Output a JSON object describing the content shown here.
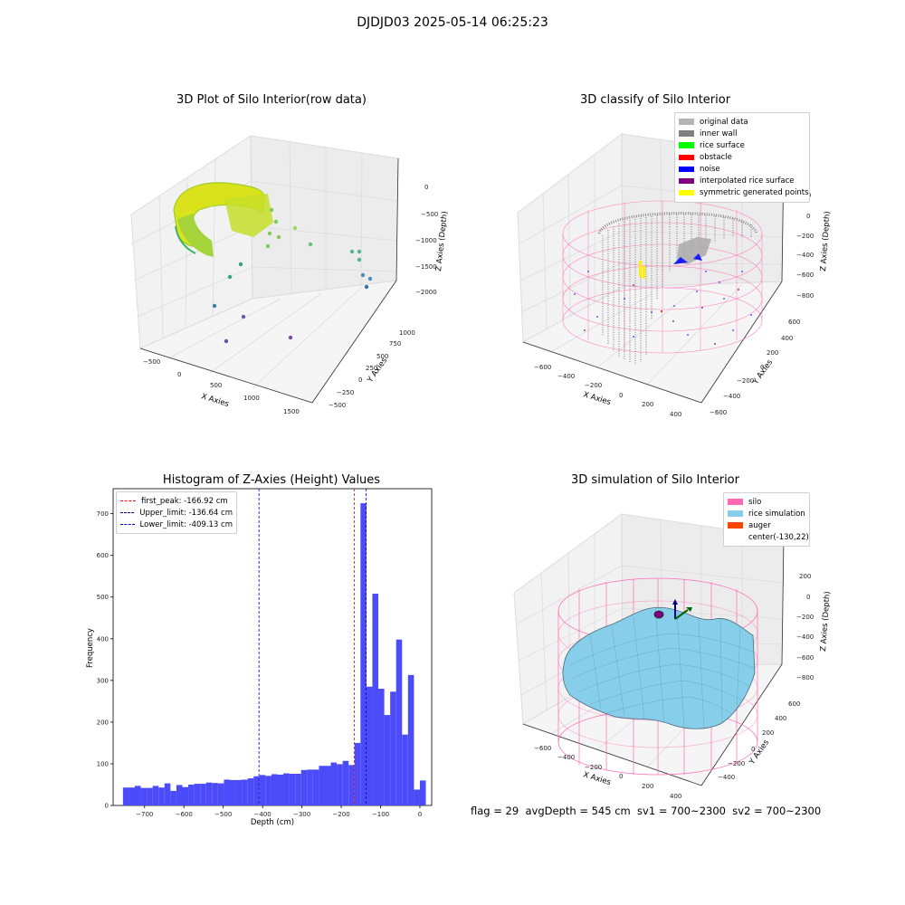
{
  "figure": {
    "title": "DJDJD03 2025-05-14 06:25:23"
  },
  "panels": {
    "raw": {
      "title": "3D Plot of Silo Interior(row data)",
      "xlabel": "X Axies",
      "ylabel": "Y Axies",
      "zlabel": "Z Axies (Depth)",
      "xticks": [
        "−500",
        "0",
        "500",
        "1000",
        "1500"
      ],
      "yticks": [
        "1000",
        "750",
        "500",
        "250",
        "0",
        "−250",
        "−500"
      ],
      "zticks": [
        "0",
        "−500",
        "−1000",
        "−1500",
        "−2000"
      ]
    },
    "classify": {
      "title": "3D classify of Silo Interior",
      "xlabel": "X Axies",
      "ylabel": "Y Axies",
      "zlabel": "Z Axies (Depth)",
      "xticks": [
        "−600",
        "−400",
        "−200",
        "0",
        "200",
        "400"
      ],
      "yticks": [
        "600",
        "400",
        "200",
        "0",
        "−200",
        "−400",
        "−600"
      ],
      "zticks": [
        "200",
        "0",
        "−200",
        "−400",
        "−600",
        "−800"
      ],
      "legend": [
        {
          "label": "original data",
          "color": "#b4b4b4"
        },
        {
          "label": "inner wall",
          "color": "#808080"
        },
        {
          "label": "rice surface",
          "color": "#00ff00"
        },
        {
          "label": "obstacle",
          "color": "#ff0000"
        },
        {
          "label": "noise",
          "color": "#0000ff"
        },
        {
          "label": "interpolated rice surface",
          "color": "#800080"
        },
        {
          "label": "symmetric generated points",
          "color": "#ffff00"
        }
      ]
    },
    "histogram": {
      "title": "Histogram of Z-Axies (Height) Values",
      "xlabel": "Depth (cm)",
      "ylabel": "Frequency",
      "xticks": [
        "−700",
        "−600",
        "−500",
        "−400",
        "−300",
        "−200",
        "−100",
        "0"
      ],
      "yticks": [
        "0",
        "100",
        "200",
        "300",
        "400",
        "500",
        "600",
        "700"
      ],
      "legend": [
        {
          "label": "first_peak: -166.92 cm",
          "color": "#ff0000"
        },
        {
          "label": "Upper_limit: -136.64 cm",
          "color": "#0000cc"
        },
        {
          "label": "Lower_limit: -409.13 cm",
          "color": "#0000cc"
        }
      ]
    },
    "simulation": {
      "title": "3D simulation of Silo Interior",
      "xlabel": "X Axies",
      "ylabel": "Y Axies",
      "zlabel": "Z Axies (Depth)",
      "xticks": [
        "−600",
        "−400",
        "−200",
        "0",
        "200",
        "400"
      ],
      "yticks": [
        "600",
        "400",
        "200",
        "0",
        "−200",
        "−400"
      ],
      "zticks": [
        "200",
        "0",
        "−200",
        "−400",
        "−600",
        "−800"
      ],
      "legend": [
        {
          "label": "silo",
          "color": "#ff69b4"
        },
        {
          "label": "rice simulation",
          "color": "#87ceeb"
        },
        {
          "label": "auger",
          "color": "#ff4500"
        },
        {
          "label": "center(-130,22)",
          "color": ""
        }
      ]
    }
  },
  "footer": {
    "text": "flag = 29  avgDepth = 545 cm  sv1 = 700~2300  sv2 = 700~2300"
  },
  "chart_data": {
    "type": "bar",
    "title": "Histogram of Z-Axies (Height) Values",
    "xlabel": "Depth (cm)",
    "ylabel": "Frequency",
    "xlim": [
      -780,
      30
    ],
    "ylim": [
      0,
      760
    ],
    "bin_start": -755,
    "bin_width": 15.1,
    "values": [
      43,
      43,
      47,
      42,
      42,
      47,
      43,
      53,
      35,
      49,
      44,
      50,
      52,
      52,
      55,
      54,
      53,
      62,
      61,
      61,
      62,
      65,
      70,
      73,
      71,
      75,
      74,
      77,
      76,
      76,
      85,
      86,
      86,
      95,
      95,
      103,
      99,
      107,
      97,
      150,
      725,
      285,
      508,
      280,
      217,
      273,
      398,
      170,
      313,
      38,
      60
    ],
    "lines": [
      {
        "name": "first_peak",
        "value": -166.92,
        "color": "#ff0000"
      },
      {
        "name": "Upper_limit",
        "value": -136.64,
        "color": "#0000cc"
      },
      {
        "name": "Lower_limit",
        "value": -409.13,
        "color": "#0000cc"
      }
    ],
    "bar_color": "#4b4bfa"
  }
}
